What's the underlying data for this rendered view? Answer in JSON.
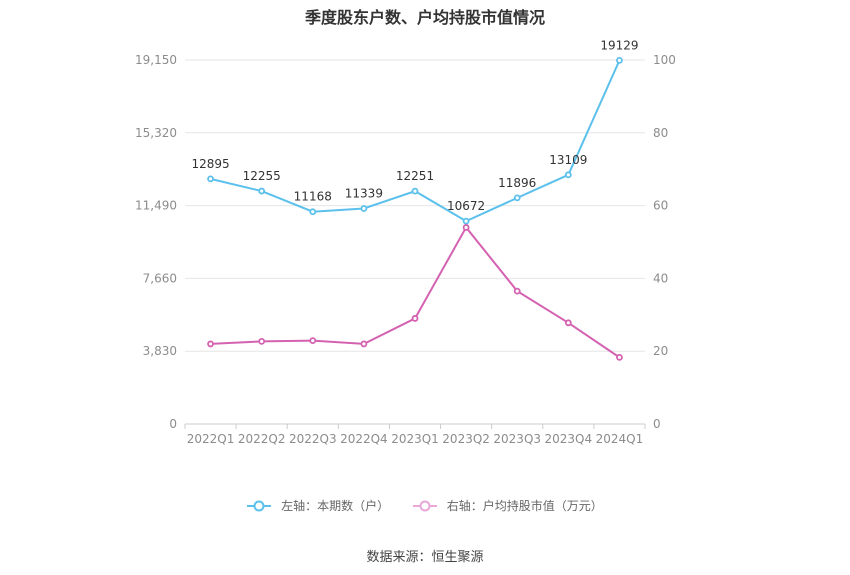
{
  "chart_data": {
    "type": "line",
    "title": "季度股东户数、户均持股市值情况",
    "categories": [
      "2022Q1",
      "2022Q2",
      "2022Q3",
      "2022Q4",
      "2023Q1",
      "2023Q2",
      "2023Q3",
      "2023Q4",
      "2024Q1"
    ],
    "series": [
      {
        "name": "左轴：本期数（户）",
        "axis": "left",
        "color": "#5bc0eb",
        "values": [
          12895,
          12255,
          11168,
          11339,
          12251,
          10672,
          11896,
          13109,
          19129
        ],
        "data_labels": [
          "12895",
          "12255",
          "11168",
          "11339",
          "12251",
          "10672",
          "11896",
          "13109",
          "19129"
        ]
      },
      {
        "name": "右轴：户均持股市值（万元）",
        "axis": "right",
        "color": "#d462b1",
        "values": [
          22.0,
          22.7,
          22.9,
          22.0,
          29.0,
          54.0,
          36.5,
          27.8,
          18.3
        ]
      }
    ],
    "y_left": {
      "ylim": [
        0,
        19150
      ],
      "ticks": [
        "0",
        "3,830",
        "7,660",
        "11,490",
        "15,320",
        "19,150"
      ]
    },
    "y_right": {
      "ylim": [
        0,
        100
      ],
      "ticks": [
        "0",
        "20",
        "40",
        "60",
        "80",
        "100"
      ]
    },
    "grid": true,
    "legend_position": "bottom"
  },
  "source": "数据来源：恒生聚源"
}
